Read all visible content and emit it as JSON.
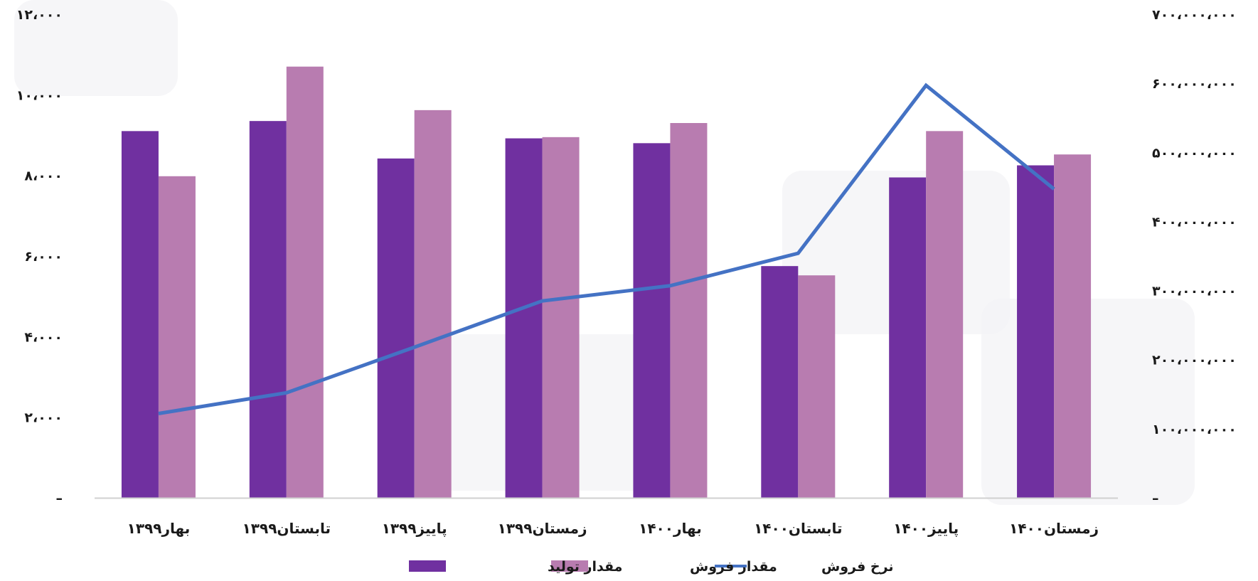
{
  "chart_data": {
    "type": "bar",
    "categories": [
      "بهار۱۳۹۹",
      "تابستان۱۳۹۹",
      "پاییز۱۳۹۹",
      "زمستان۱۳۹۹",
      "بهار۱۴۰۰",
      "تابستان۱۴۰۰",
      "پاییز۱۴۰۰",
      "زمستان۱۴۰۰"
    ],
    "series": [
      {
        "name": "مقدار تولید",
        "kind": "bar",
        "axis": "left",
        "color": "#7030a0",
        "values": [
          9100,
          9350,
          8420,
          8920,
          8800,
          5750,
          7950,
          8250
        ]
      },
      {
        "name": "مقدار فروش",
        "kind": "bar",
        "axis": "left",
        "color": "#b87cb0",
        "values": [
          7980,
          10700,
          9620,
          8950,
          9300,
          5520,
          9100,
          8520
        ]
      },
      {
        "name": "نرخ فروش",
        "kind": "line",
        "axis": "right",
        "color": "#4472c4",
        "values": [
          122000000,
          152000000,
          218000000,
          285000000,
          307000000,
          354000000,
          597000000,
          447000000
        ]
      }
    ],
    "y_left": {
      "ylim": [
        0,
        12000
      ],
      "ticks": [
        0,
        2000,
        4000,
        6000,
        8000,
        10000,
        12000
      ],
      "tick_labels": [
        "–",
        "۲،۰۰۰",
        "۴،۰۰۰",
        "۶،۰۰۰",
        "۸،۰۰۰",
        "۱۰،۰۰۰",
        "۱۲،۰۰۰"
      ]
    },
    "y_right": {
      "ylim": [
        0,
        700000000
      ],
      "ticks": [
        0,
        100000000,
        200000000,
        300000000,
        400000000,
        500000000,
        600000000,
        700000000
      ],
      "tick_labels": [
        "–",
        "۱۰۰،۰۰۰،۰۰۰",
        "۲۰۰،۰۰۰،۰۰۰",
        "۳۰۰،۰۰۰،۰۰۰",
        "۴۰۰،۰۰۰،۰۰۰",
        "۵۰۰،۰۰۰،۰۰۰",
        "۶۰۰،۰۰۰،۰۰۰",
        "۷۰۰،۰۰۰،۰۰۰"
      ]
    },
    "grid": false,
    "legend_position": "bottom-center",
    "legend": [
      {
        "label": "نرخ فروش",
        "series": 2
      },
      {
        "label": "مقدار فروش",
        "series": 1
      },
      {
        "label": "مقدار تولید",
        "series": 0
      }
    ]
  }
}
